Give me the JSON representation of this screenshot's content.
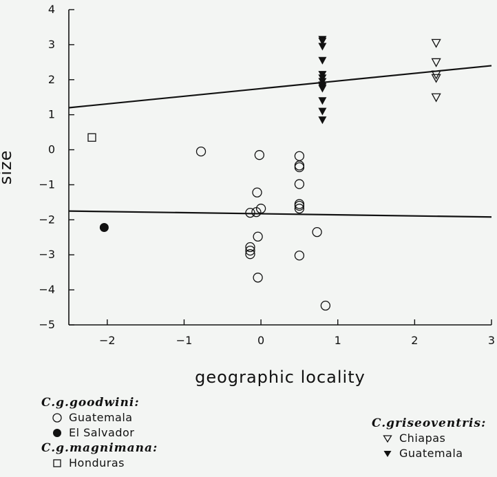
{
  "chart_data": {
    "type": "scatter",
    "xlabel": "geographic locality",
    "ylabel": "size",
    "xlim": [
      -2.5,
      3
    ],
    "ylim": [
      -5,
      4
    ],
    "xticks": [
      -2,
      -1,
      0,
      1,
      2,
      3
    ],
    "yticks": [
      -5,
      -4,
      -3,
      -2,
      -1,
      0,
      1,
      2,
      3,
      4
    ],
    "grid": false,
    "series": [
      {
        "name": "Guatemala",
        "group": "C.g.goodwini",
        "marker": "open-circle",
        "points": [
          [
            -0.78,
            -0.05
          ],
          [
            -0.02,
            -0.15
          ],
          [
            -0.05,
            -1.22
          ],
          [
            0.0,
            -1.68
          ],
          [
            -0.06,
            -1.78
          ],
          [
            -0.14,
            -1.8
          ],
          [
            -0.04,
            -2.48
          ],
          [
            -0.14,
            -2.78
          ],
          [
            -0.14,
            -2.88
          ],
          [
            -0.14,
            -2.98
          ],
          [
            -0.04,
            -3.65
          ],
          [
            0.5,
            -0.18
          ],
          [
            0.5,
            -0.45
          ],
          [
            0.5,
            -0.5
          ],
          [
            0.5,
            -0.98
          ],
          [
            0.5,
            -1.55
          ],
          [
            0.5,
            -1.6
          ],
          [
            0.5,
            -1.68
          ],
          [
            0.73,
            -2.35
          ],
          [
            0.5,
            -3.02
          ],
          [
            0.84,
            -4.45
          ]
        ]
      },
      {
        "name": "El Salvador",
        "group": "C.g.goodwini",
        "marker": "filled-circle",
        "points": [
          [
            -2.04,
            -2.22
          ]
        ]
      },
      {
        "name": "Honduras",
        "group": "C.g.magnimana",
        "marker": "open-square",
        "points": [
          [
            -2.2,
            0.35
          ]
        ]
      },
      {
        "name": "Chiapas",
        "group": "C.griseoventris",
        "marker": "open-triangle-down",
        "points": [
          [
            2.28,
            3.05
          ],
          [
            2.28,
            2.5
          ],
          [
            2.28,
            2.15
          ],
          [
            2.28,
            2.05
          ],
          [
            2.28,
            1.5
          ]
        ]
      },
      {
        "name": "Guatemala",
        "group": "C.griseoventris",
        "marker": "filled-triangle-down",
        "points": [
          [
            0.8,
            3.15
          ],
          [
            0.8,
            3.1
          ],
          [
            0.8,
            2.95
          ],
          [
            0.8,
            2.55
          ],
          [
            0.8,
            2.15
          ],
          [
            0.8,
            2.05
          ],
          [
            0.8,
            1.95
          ],
          [
            0.8,
            1.85
          ],
          [
            0.8,
            1.8
          ],
          [
            0.8,
            1.75
          ],
          [
            0.8,
            1.4
          ],
          [
            0.8,
            1.1
          ],
          [
            0.8,
            0.85
          ]
        ]
      }
    ],
    "lines": [
      {
        "x": [
          -2.5,
          3
        ],
        "y": [
          1.2,
          2.4
        ]
      },
      {
        "x": [
          -2.5,
          3
        ],
        "y": [
          -1.75,
          -1.92
        ]
      }
    ]
  },
  "legend": {
    "left": [
      {
        "title": "C.g.goodwini:",
        "items": [
          {
            "marker": "open-circle",
            "label": "Guatemala"
          },
          {
            "marker": "filled-circle",
            "label": "El Salvador"
          }
        ]
      },
      {
        "title": "C.g.magnimana:",
        "items": [
          {
            "marker": "open-square",
            "label": "Honduras"
          }
        ]
      }
    ],
    "right": [
      {
        "title": "C.griseoventris:",
        "items": [
          {
            "marker": "open-triangle-down",
            "label": "Chiapas"
          },
          {
            "marker": "filled-triangle-down",
            "label": "Guatemala"
          }
        ]
      }
    ]
  }
}
